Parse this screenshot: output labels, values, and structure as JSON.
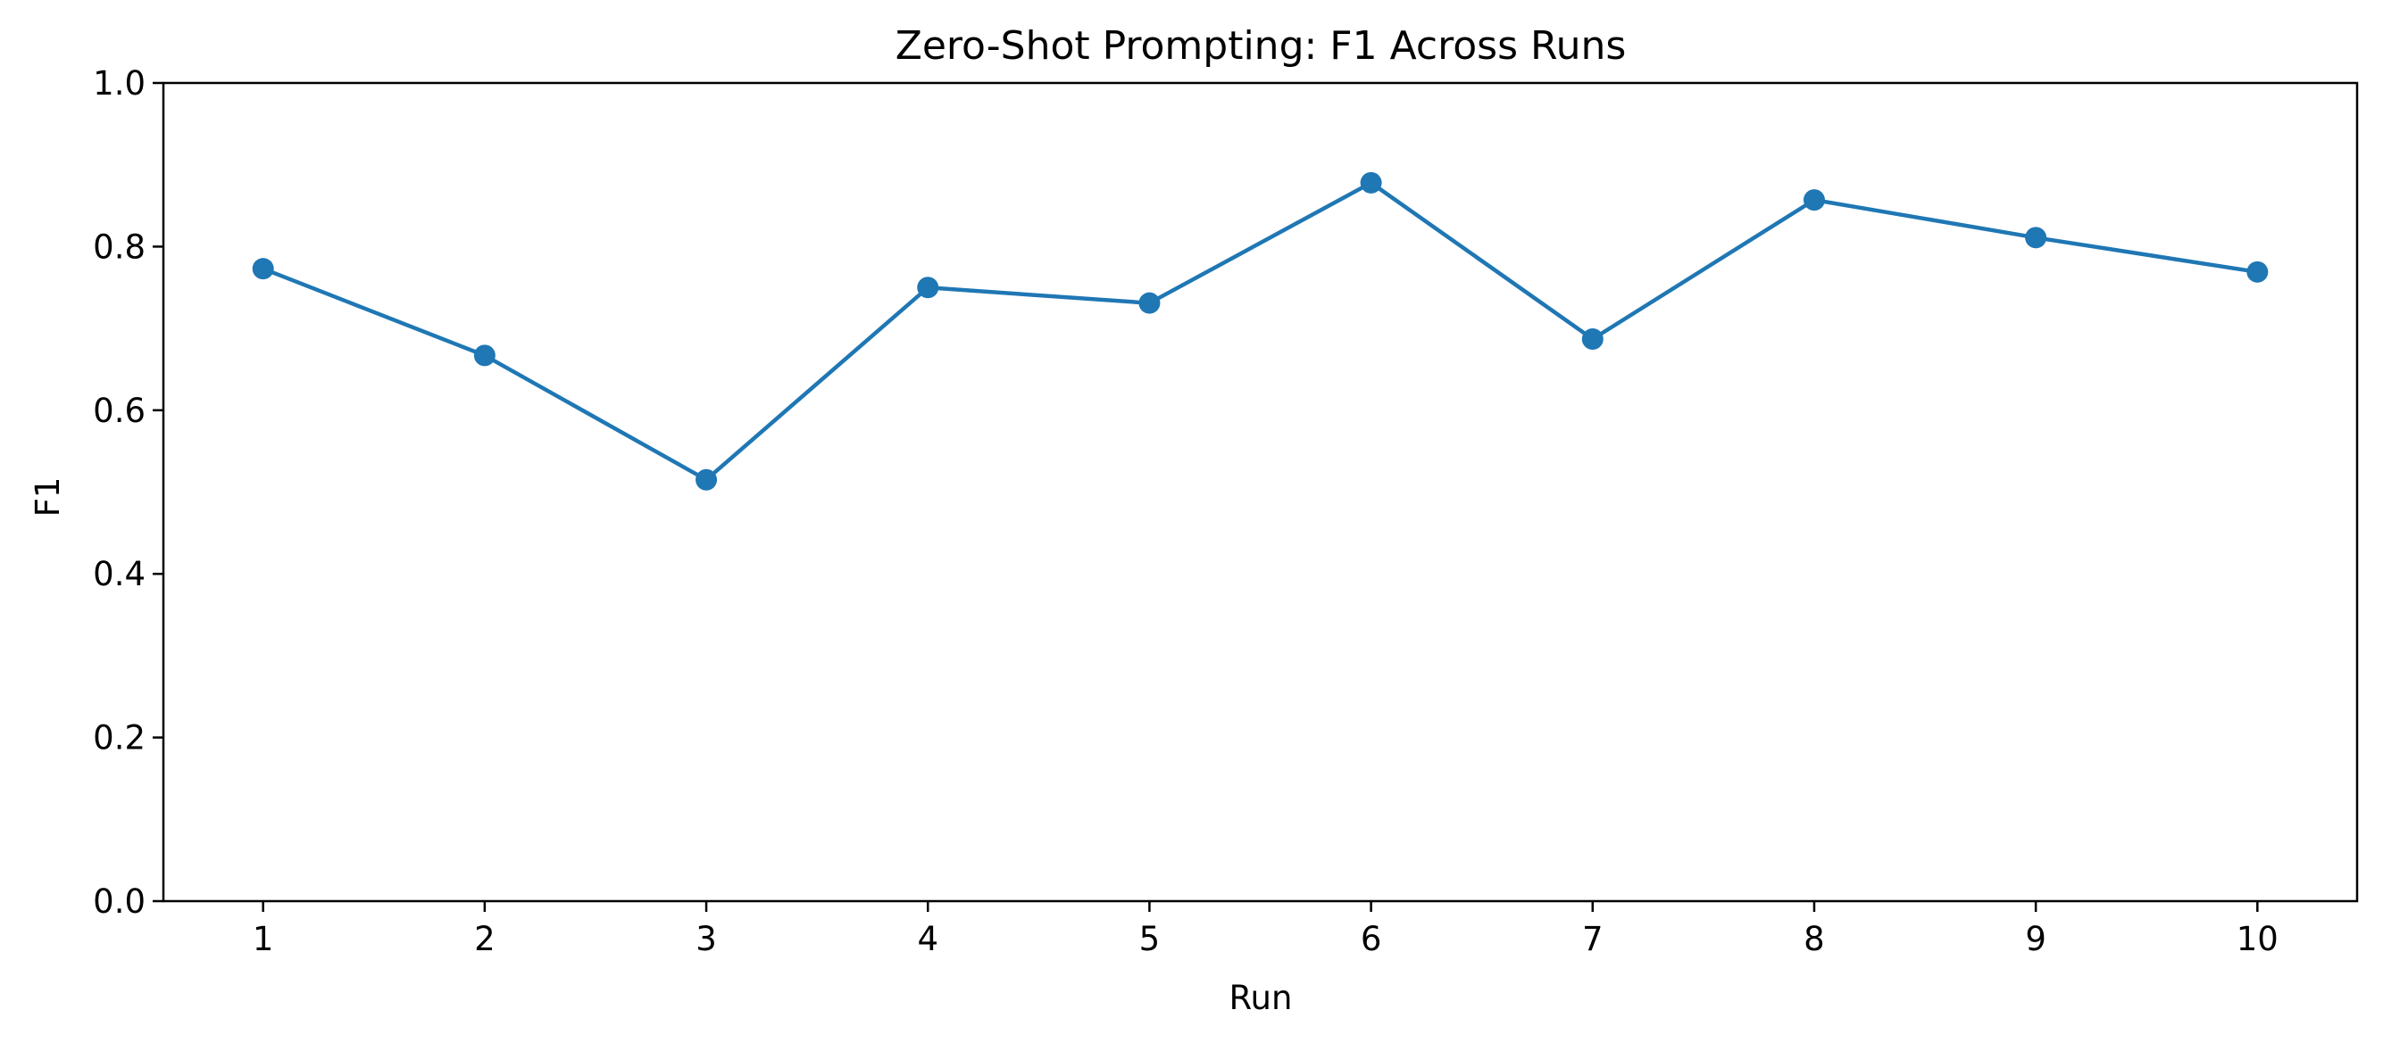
{
  "chart_data": {
    "type": "line",
    "title": "Zero-Shot Prompting: F1 Across  Runs",
    "xlabel": "Run",
    "ylabel": "F1",
    "x": [
      1,
      2,
      3,
      4,
      5,
      6,
      7,
      8,
      9,
      10
    ],
    "xticks": [
      "1",
      "2",
      "3",
      "4",
      "5",
      "6",
      "7",
      "8",
      "9",
      "10"
    ],
    "yticks": [
      "0.0",
      "0.2",
      "0.4",
      "0.6",
      "0.8",
      "1.0"
    ],
    "ylim": [
      0,
      1
    ],
    "xlim": [
      0.55,
      10.45
    ],
    "grid": false,
    "series": [
      {
        "values": [
          0.773,
          0.667,
          0.515,
          0.75,
          0.731,
          0.878,
          0.687,
          0.857,
          0.811,
          0.769
        ],
        "color": "#1f77b4",
        "marker": "circle"
      }
    ]
  }
}
